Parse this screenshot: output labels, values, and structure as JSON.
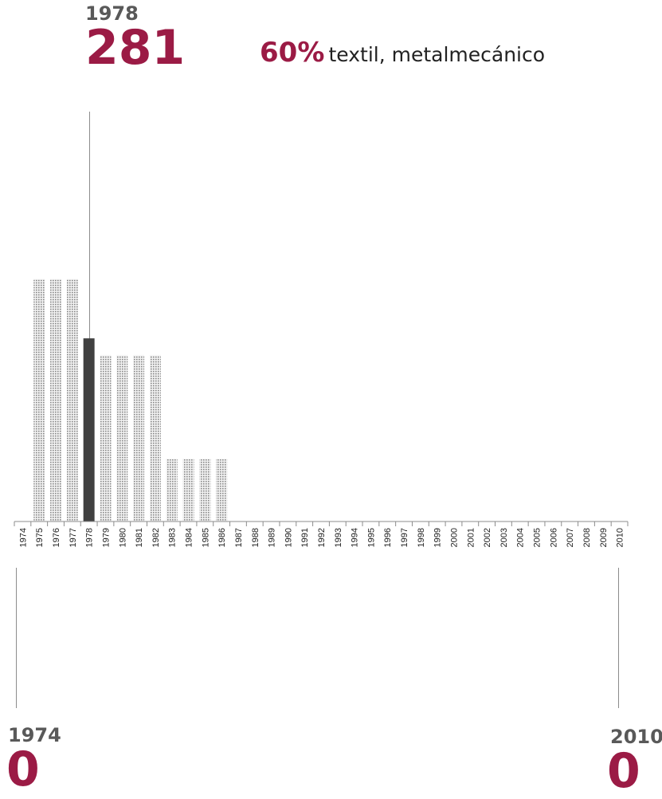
{
  "callout_top": {
    "year": "1978",
    "value": "281",
    "percent": "60%",
    "sectors": "textil, metalmecánico"
  },
  "callout_left": {
    "year": "1974",
    "value": "0"
  },
  "callout_right": {
    "year": "2010",
    "value": "0"
  },
  "colors": {
    "accent": "#9b1b45",
    "highlight_bar": "#404040",
    "bar_dots": "#8a8a8a",
    "axis": "#8c8c8c"
  },
  "chart_data": {
    "type": "bar",
    "title": "",
    "xlabel": "",
    "ylabel": "",
    "highlight_category": "1978",
    "categories": [
      "1974",
      "1975",
      "1976",
      "1977",
      "1978",
      "1979",
      "1980",
      "1981",
      "1982",
      "1983",
      "1984",
      "1985",
      "1986",
      "1987",
      "1988",
      "1989",
      "1990",
      "1991",
      "1992",
      "1993",
      "1994",
      "1995",
      "1996",
      "1997",
      "1998",
      "1999",
      "2000",
      "2001",
      "2002",
      "2003",
      "2004",
      "2005",
      "2006",
      "2007",
      "2008",
      "2009",
      "2010"
    ],
    "values": [
      0,
      372,
      372,
      372,
      281,
      255,
      255,
      255,
      255,
      96,
      96,
      96,
      96,
      0,
      0,
      0,
      0,
      0,
      0,
      0,
      0,
      0,
      0,
      0,
      0,
      0,
      0,
      0,
      0,
      0,
      0,
      0,
      0,
      0,
      0,
      0,
      0
    ],
    "ylim": [
      0,
      800
    ]
  }
}
